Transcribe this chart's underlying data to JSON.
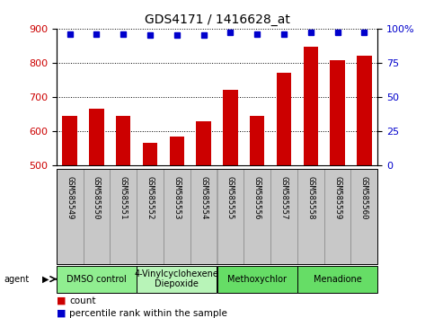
{
  "title": "GDS4171 / 1416628_at",
  "samples": [
    "GSM585549",
    "GSM585550",
    "GSM585551",
    "GSM585552",
    "GSM585553",
    "GSM585554",
    "GSM585555",
    "GSM585556",
    "GSM585557",
    "GSM585558",
    "GSM585559",
    "GSM585560"
  ],
  "counts": [
    645,
    665,
    646,
    567,
    585,
    630,
    720,
    645,
    770,
    848,
    808,
    822
  ],
  "percentiles": [
    96,
    96,
    96,
    95,
    95,
    95,
    97,
    96,
    96,
    97,
    97,
    97
  ],
  "ymin": 500,
  "ymax": 900,
  "yticks": [
    500,
    600,
    700,
    800,
    900
  ],
  "y2ticks": [
    0,
    25,
    50,
    75,
    100
  ],
  "y2labels": [
    "0",
    "25",
    "50",
    "75",
    "100%"
  ],
  "bar_color": "#cc0000",
  "dot_color": "#0000cc",
  "grid_color": "#000000",
  "agent_groups": [
    {
      "label": "DMSO control",
      "start": 0,
      "end": 3,
      "color": "#90ee90"
    },
    {
      "label": "4-Vinylcyclohexene\nDiepoxide",
      "start": 3,
      "end": 6,
      "color": "#b8f4b8"
    },
    {
      "label": "Methoxychlor",
      "start": 6,
      "end": 9,
      "color": "#66dd66"
    },
    {
      "label": "Menadione",
      "start": 9,
      "end": 12,
      "color": "#66dd66"
    }
  ],
  "bar_width": 0.55,
  "legend_count_color": "#cc0000",
  "legend_pct_color": "#0000cc",
  "title_fontsize": 10,
  "label_fontsize": 6.5,
  "tick_fontsize": 8,
  "agent_fontsize": 7,
  "legend_fontsize": 7.5,
  "sample_box_color": "#c8c8c8",
  "sample_box_edge": "#888888"
}
